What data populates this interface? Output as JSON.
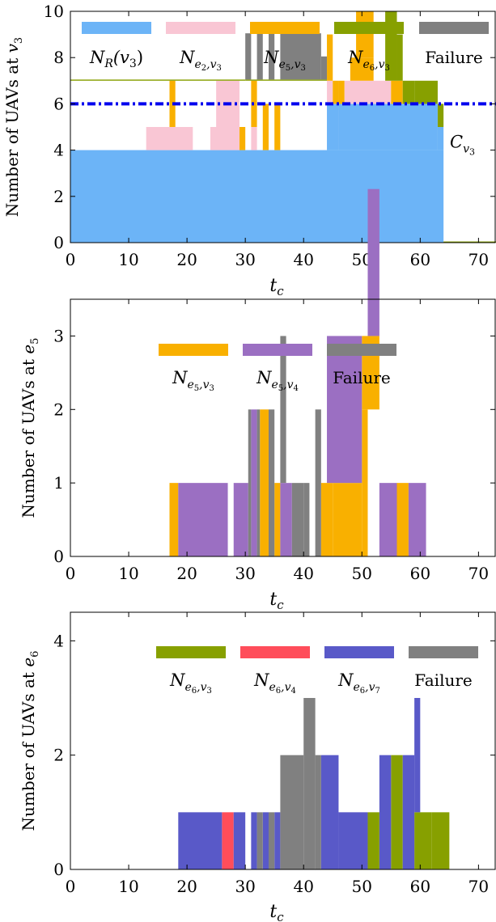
{
  "chart_data": [
    {
      "type": "area",
      "stacked": true,
      "xlabel": "t_c",
      "ylabel": "Number of UAVs at v_3",
      "xlim": [
        0,
        73
      ],
      "ylim": [
        0,
        10
      ],
      "xticks": [
        0,
        10,
        20,
        30,
        40,
        50,
        60,
        70
      ],
      "yticks": [
        0,
        2,
        4,
        6,
        8,
        10
      ],
      "capacity_line": {
        "value": 6,
        "label": "C_v3",
        "color": "#0000ee"
      },
      "legend_placement": "top",
      "series": [
        {
          "name": "N_R(v3)",
          "color": "#6cb4f7",
          "segments": [
            [
              0,
              64,
              4
            ],
            [
              44,
              46,
              2
            ],
            [
              46,
              63,
              2
            ],
            [
              63,
              64,
              1
            ]
          ]
        },
        {
          "name": "N_e2,v3",
          "color": "#f9c6d4",
          "segments": [
            [
              13,
              21,
              1
            ],
            [
              24,
              29,
              1
            ],
            [
              25,
              29,
              2
            ],
            [
              31,
              32,
              1
            ],
            [
              44,
              45,
              1
            ],
            [
              47,
              55,
              1
            ]
          ]
        },
        {
          "name": "N_e5,v3",
          "color": "#f9b000",
          "segments": [
            [
              17,
              18,
              2
            ],
            [
              29,
              30,
              1
            ],
            [
              31,
              32,
              2
            ],
            [
              33,
              34,
              2
            ],
            [
              35,
              36,
              2
            ],
            [
              44,
              45,
              2
            ],
            [
              45,
              46,
              1
            ],
            [
              46,
              47,
              1
            ],
            [
              48,
              52,
              1
            ],
            [
              49,
              52,
              2
            ],
            [
              55,
              57,
              1
            ]
          ]
        },
        {
          "name": "N_e6,v3",
          "color": "#87a000",
          "segments": [
            [
              0,
              30,
              0.05
            ],
            [
              30,
              44,
              0.05
            ],
            [
              54,
              56,
              3
            ],
            [
              56,
              57,
              2
            ],
            [
              57,
              59,
              1
            ],
            [
              59,
              63,
              1
            ],
            [
              63,
              64,
              1
            ],
            [
              64,
              73,
              0.05
            ]
          ]
        },
        {
          "name": "Failure",
          "color": "#808080",
          "segments": [
            [
              30,
              31,
              2
            ],
            [
              32,
              33,
              2
            ],
            [
              34,
              35,
              2
            ],
            [
              36,
              43,
              2
            ],
            [
              43,
              44,
              1
            ]
          ]
        }
      ]
    },
    {
      "type": "area",
      "stacked": true,
      "xlabel": "t_c",
      "ylabel": "Number of UAVs at e_5",
      "xlim": [
        0,
        73
      ],
      "ylim": [
        0,
        3.5
      ],
      "xticks": [
        0,
        10,
        20,
        30,
        40,
        50,
        60,
        70
      ],
      "yticks": [
        0,
        1,
        2,
        3
      ],
      "legend_placement": "top",
      "series": [
        {
          "name": "N_e5,v3",
          "color": "#f9b000",
          "segments": [
            [
              17,
              18.5,
              1
            ],
            [
              32.5,
              34,
              2
            ],
            [
              35,
              36,
              1
            ],
            [
              43,
              45,
              1
            ],
            [
              45,
              50,
              1
            ],
            [
              50,
              51,
              2
            ],
            [
              50,
              53,
              1
            ],
            [
              56,
              58,
              1
            ]
          ]
        },
        {
          "name": "N_e5,v4",
          "color": "#9b6fc2",
          "segments": [
            [
              18.5,
              27,
              1
            ],
            [
              28,
              30.5,
              1
            ],
            [
              31,
              32,
              2
            ],
            [
              36,
              38,
              1
            ],
            [
              44,
              50,
              2
            ],
            [
              51,
              53,
              2
            ],
            [
              53,
              56,
              1
            ],
            [
              58,
              61,
              1
            ]
          ]
        },
        {
          "name": "Failure",
          "color": "#808080",
          "segments": [
            [
              30.5,
              31,
              2
            ],
            [
              32,
              32.5,
              2
            ],
            [
              34,
              35,
              2
            ],
            [
              36,
              37,
              2
            ],
            [
              38,
              40,
              1
            ],
            [
              40,
              41,
              1
            ],
            [
              42,
              43,
              2
            ]
          ]
        }
      ]
    },
    {
      "type": "area",
      "stacked": true,
      "xlabel": "t_c",
      "ylabel": "Number of UAVs at e_6",
      "xlim": [
        0,
        73
      ],
      "ylim": [
        0,
        4.5
      ],
      "xticks": [
        0,
        10,
        20,
        30,
        40,
        50,
        60,
        70
      ],
      "yticks": [
        0,
        2,
        4
      ],
      "legend_placement": "top",
      "series": [
        {
          "name": "N_e6,v3",
          "color": "#87a000",
          "segments": [
            [
              51,
              53,
              1
            ],
            [
              55,
              57,
              2
            ],
            [
              59,
              62,
              1
            ],
            [
              62,
              65,
              1
            ]
          ]
        },
        {
          "name": "N_e6,v4",
          "color": "#ff4d5a",
          "segments": [
            [
              26,
              28,
              1
            ]
          ]
        },
        {
          "name": "N_e6,v7",
          "color": "#5959c8",
          "segments": [
            [
              18.5,
              26,
              1
            ],
            [
              28,
              30,
              1
            ],
            [
              31,
              32,
              1
            ],
            [
              33,
              34,
              1
            ],
            [
              35,
              36,
              1
            ],
            [
              43,
              46,
              2
            ],
            [
              46,
              51,
              1
            ],
            [
              53,
              55,
              2
            ],
            [
              57,
              59,
              2
            ],
            [
              59,
              60,
              2
            ]
          ]
        },
        {
          "name": "Failure",
          "color": "#808080",
          "segments": [
            [
              32,
              33,
              1
            ],
            [
              34,
              35,
              1
            ],
            [
              36,
              40,
              2
            ],
            [
              40,
              42,
              3
            ],
            [
              42,
              43,
              2
            ]
          ]
        }
      ]
    }
  ],
  "ui": {
    "chart1": {
      "ylabel": "Number of UAVs at ",
      "ylabel_var": "v",
      "ylabel_sub": "3",
      "xlabel": "t",
      "xlabel_sub": "c",
      "cap_label": "C",
      "cap_sub": "v",
      "cap_sub2": "3",
      "legend": [
        {
          "main": "N",
          "sub": "R",
          "tail": "(v",
          "tailsub": "3",
          "end": ")"
        },
        {
          "main": "N",
          "sub": "e",
          "subsub": "2",
          "sub2": ",v",
          "sub2sub": "3"
        },
        {
          "main": "N",
          "sub": "e",
          "subsub": "5",
          "sub2": ",v",
          "sub2sub": "3"
        },
        {
          "main": "N",
          "sub": "e",
          "subsub": "6",
          "sub2": ",v",
          "sub2sub": "3"
        },
        {
          "text": "Failure"
        }
      ]
    },
    "chart2": {
      "ylabel": "Number of UAVs at ",
      "ylabel_var": "e",
      "ylabel_sub": "5",
      "xlabel": "t",
      "xlabel_sub": "c",
      "legend": [
        {
          "main": "N",
          "sub": "e",
          "subsub": "5",
          "sub2": ",v",
          "sub2sub": "3"
        },
        {
          "main": "N",
          "sub": "e",
          "subsub": "5",
          "sub2": ",v",
          "sub2sub": "4"
        },
        {
          "text": "Failure"
        }
      ]
    },
    "chart3": {
      "ylabel": "Number of UAVs at ",
      "ylabel_var": "e",
      "ylabel_sub": "6",
      "xlabel": "t",
      "xlabel_sub": "c",
      "legend": [
        {
          "main": "N",
          "sub": "e",
          "subsub": "6",
          "sub2": ",v",
          "sub2sub": "3"
        },
        {
          "main": "N",
          "sub": "e",
          "subsub": "6",
          "sub2": ",v",
          "sub2sub": "4"
        },
        {
          "main": "N",
          "sub": "e",
          "subsub": "6",
          "sub2": ",v",
          "sub2sub": "7"
        },
        {
          "text": "Failure"
        }
      ]
    }
  }
}
